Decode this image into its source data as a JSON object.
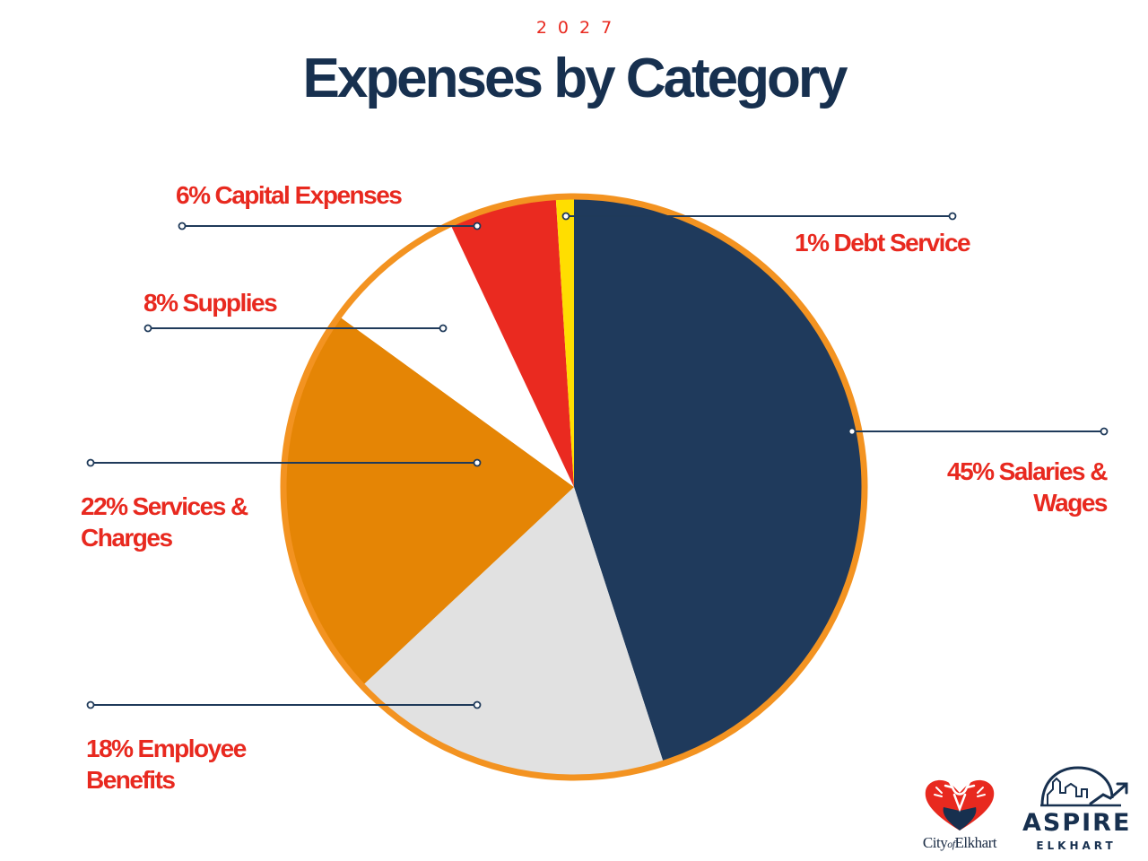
{
  "header": {
    "year": "2027",
    "title": "Expenses by Category"
  },
  "colors": {
    "title": "#17304f",
    "label": "#e8291f",
    "rim": "#f39321",
    "leader": "#1f3a5a"
  },
  "chart_data": {
    "type": "pie",
    "title": "Expenses by Category",
    "subtitle": "2027",
    "slices": [
      {
        "label": "Salaries & Wages",
        "percent_text": "45%",
        "value": 45,
        "color": "#1f3a5c"
      },
      {
        "label": "Employee Benefits",
        "percent_text": "18%",
        "value": 18,
        "color": "#e1e1e1"
      },
      {
        "label": "Services & Charges",
        "percent_text": "22%",
        "value": 22,
        "color": "#e58505"
      },
      {
        "label": "Supplies",
        "percent_text": "8%",
        "value": 8,
        "color": "#ffffff"
      },
      {
        "label": "Capital Expenses",
        "percent_text": "6%",
        "value": 6,
        "color": "#ea2a20"
      },
      {
        "label": "Debt Service",
        "percent_text": "1%",
        "value": 1,
        "color": "#ffde00"
      }
    ],
    "start_angle": "12 o'clock",
    "direction": "clockwise",
    "legend": "none"
  },
  "logos": {
    "city": {
      "city_word": "City",
      "of_word": "of",
      "name_word": "Elkhart",
      "icon": "heart-deer-icon"
    },
    "aspire": {
      "word": "ASPIRE",
      "sub": "ELKHART",
      "icon": "skyline-arrow-icon"
    }
  }
}
